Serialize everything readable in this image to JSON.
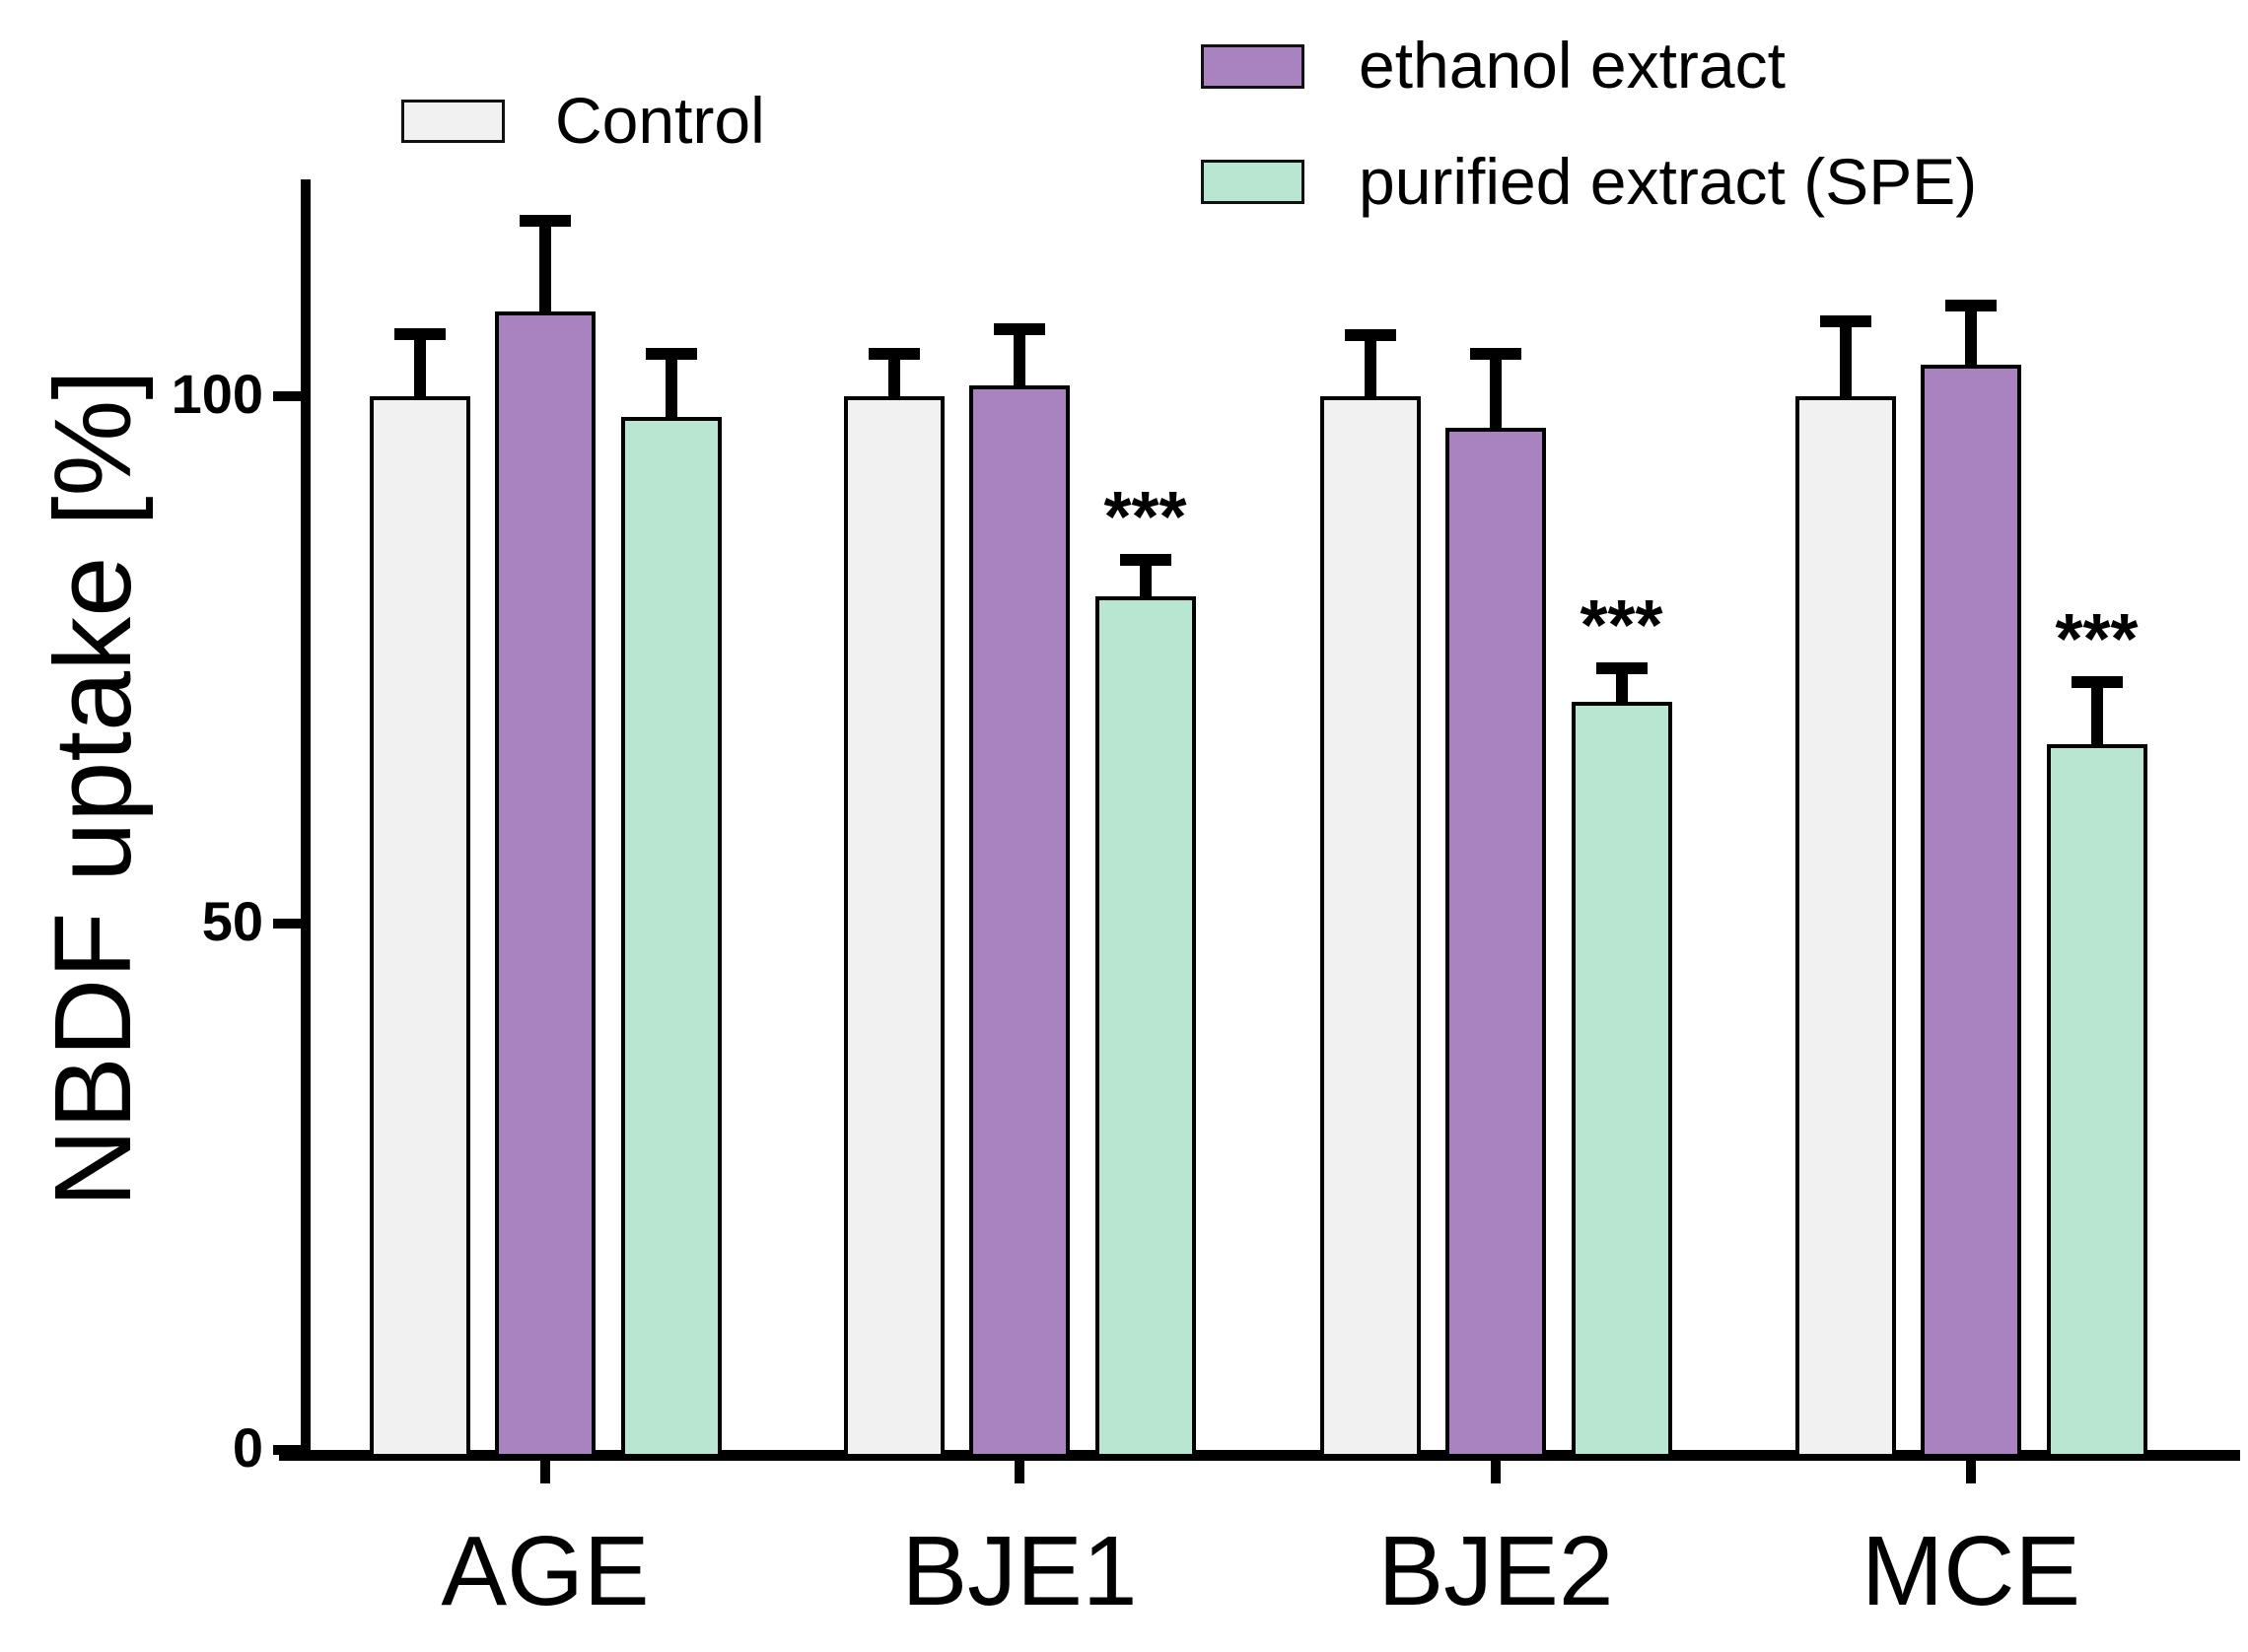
{
  "figure": {
    "background": "#ffffff",
    "axis_color": "#000000"
  },
  "legend": [
    {
      "label": "Control",
      "color": "#f1f1f1"
    },
    {
      "label": "ethanol extract",
      "color": "#a982c0"
    },
    {
      "label": "purified extract (SPE)",
      "color": "#b9e6d0"
    }
  ],
  "chart_data": {
    "type": "bar",
    "title": "",
    "xlabel": "",
    "ylabel": "NBDF uptake [%]",
    "categories": [
      "AGE",
      "BJE1",
      "BJE2",
      "MCE"
    ],
    "yticks": [
      0,
      50,
      100
    ],
    "ylim": [
      0,
      120
    ],
    "grid": false,
    "legend_position": "top",
    "error_bars": "upper caps only",
    "series": [
      {
        "name": "Control",
        "color": "#f1f1f1",
        "values": [
          100,
          100,
          100,
          100
        ],
        "errors": [
          6.5,
          4.6,
          6.4,
          7.7
        ]
      },
      {
        "name": "ethanol extract",
        "color": "#a982c0",
        "values": [
          108,
          101,
          97,
          103
        ],
        "errors": [
          9.2,
          5.9,
          7.6,
          6.2
        ]
      },
      {
        "name": "purified extract (SPE)",
        "color": "#b9e6d0",
        "values": [
          98,
          81,
          71,
          67
        ],
        "errors": [
          6.6,
          4.0,
          3.7,
          6.4
        ]
      }
    ],
    "significance": [
      {
        "category": "BJE1",
        "series": "purified extract (SPE)",
        "label": "***"
      },
      {
        "category": "BJE2",
        "series": "purified extract (SPE)",
        "label": "***"
      },
      {
        "category": "MCE",
        "series": "purified extract (SPE)",
        "label": "***"
      }
    ]
  }
}
